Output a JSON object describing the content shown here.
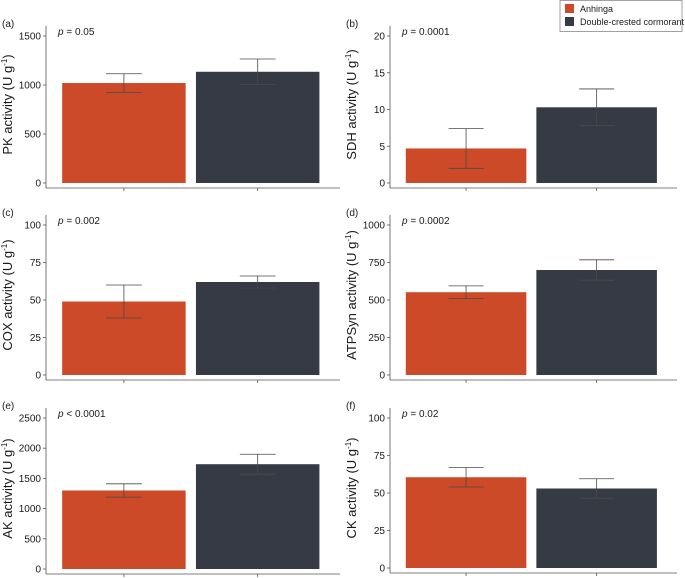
{
  "legend": {
    "items": [
      {
        "label": "Anhinga",
        "color": "#cc4a27"
      },
      {
        "label": "Double-crested cormorant",
        "color": "#353a45"
      }
    ]
  },
  "chart_data": [
    {
      "type": "bar",
      "panel": "(a)",
      "ylabel": "PK activity (U g-1)",
      "ylabel_main": "PK activity (U g",
      "ylabel_sup": "-1",
      "ylabel_end": ")",
      "p_prefix": "p",
      "p_rest": " = 0.05",
      "ylim": [
        0,
        1500
      ],
      "yticks": [
        0,
        500,
        1000,
        1500
      ],
      "categories": [
        "Anhinga",
        "Double-crested cormorant"
      ],
      "series": [
        {
          "name": "Anhinga",
          "value": 1020,
          "error": 95
        },
        {
          "name": "Double-crested cormorant",
          "value": 1135,
          "error": 130
        }
      ]
    },
    {
      "type": "bar",
      "panel": "(b)",
      "ylabel": "SDH activity (U g-1)",
      "ylabel_main": "SDH activity (U g",
      "ylabel_sup": "-1",
      "ylabel_end": ")",
      "p_prefix": "p",
      "p_rest": " = 0.0001",
      "ylim": [
        0,
        20
      ],
      "yticks": [
        0,
        5,
        10,
        15,
        20
      ],
      "categories": [
        "Anhinga",
        "Double-crested cormorant"
      ],
      "series": [
        {
          "name": "Anhinga",
          "value": 4.7,
          "error": 2.7
        },
        {
          "name": "Double-crested cormorant",
          "value": 10.3,
          "error": 2.5
        }
      ]
    },
    {
      "type": "bar",
      "panel": "(c)",
      "ylabel": "COX activity (U g-1)",
      "ylabel_main": "COX activity (U g",
      "ylabel_sup": "-1",
      "ylabel_end": ")",
      "p_prefix": "p",
      "p_rest": " = 0.002",
      "ylim": [
        0,
        100
      ],
      "yticks": [
        0,
        25,
        50,
        75,
        100
      ],
      "categories": [
        "Anhinga",
        "Double-crested cormorant"
      ],
      "series": [
        {
          "name": "Anhinga",
          "value": 49,
          "error": 11
        },
        {
          "name": "Double-crested cormorant",
          "value": 62,
          "error": 4
        }
      ]
    },
    {
      "type": "bar",
      "panel": "(d)",
      "ylabel": "ATPSyn activity (U g-1)",
      "ylabel_main": "ATPSyn activity (U g",
      "ylabel_sup": "-1",
      "ylabel_end": ")",
      "p_prefix": "p",
      "p_rest": " = 0.0002",
      "ylim": [
        0,
        1000
      ],
      "yticks": [
        0,
        250,
        500,
        750,
        1000
      ],
      "categories": [
        "Anhinga",
        "Double-crested cormorant"
      ],
      "series": [
        {
          "name": "Anhinga",
          "value": 552,
          "error": 42
        },
        {
          "name": "Double-crested cormorant",
          "value": 700,
          "error": 68
        }
      ]
    },
    {
      "type": "bar",
      "panel": "(e)",
      "ylabel": "AK activity (U g-1)",
      "ylabel_main": "AK activity (U g",
      "ylabel_sup": "-1",
      "ylabel_end": ")",
      "p_prefix": "p",
      "p_rest": " < 0.0001",
      "ylim": [
        0,
        2500
      ],
      "yticks": [
        0,
        500,
        1000,
        1500,
        2000,
        2500
      ],
      "categories": [
        "Anhinga",
        "Double-crested cormorant"
      ],
      "series": [
        {
          "name": "Anhinga",
          "value": 1300,
          "error": 110
        },
        {
          "name": "Double-crested cormorant",
          "value": 1735,
          "error": 165
        }
      ]
    },
    {
      "type": "bar",
      "panel": "(f)",
      "ylabel": "CK activity (U g-1)",
      "ylabel_main": "CK activity (U g",
      "ylabel_sup": "-1",
      "ylabel_end": ")",
      "p_prefix": "p",
      "p_rest": " = 0.02",
      "ylim": [
        0,
        100
      ],
      "yticks": [
        0,
        25,
        50,
        75,
        100
      ],
      "categories": [
        "Anhinga",
        "Double-crested cormorant"
      ],
      "series": [
        {
          "name": "Anhinga",
          "value": 60.5,
          "error": 6.5
        },
        {
          "name": "Double-crested cormorant",
          "value": 53,
          "error": 6.5
        }
      ]
    }
  ]
}
